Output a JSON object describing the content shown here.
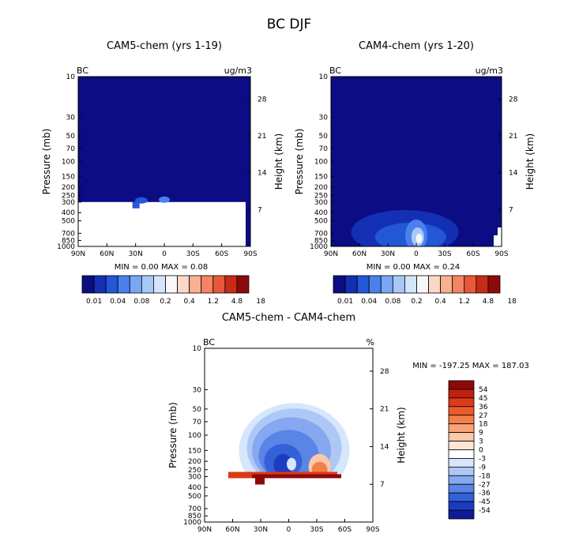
{
  "figure_title": "BC DJF",
  "chart_data": [
    {
      "type": "heatmap",
      "title": "CAM5-chem (yrs 1-19)",
      "left_label": "BC",
      "units": "ug/m3",
      "xlabel": "",
      "ylabel": "Pressure (mb)",
      "ylabel_right": "Height (km)",
      "x_ticks": [
        "90N",
        "60N",
        "30N",
        "0",
        "30S",
        "60S",
        "90S"
      ],
      "y_ticks": [
        "10",
        "30",
        "50",
        "70",
        "100",
        "150",
        "200",
        "250",
        "300",
        "400",
        "500",
        "700",
        "850",
        "1000"
      ],
      "height_ticks": [
        "28",
        "21",
        "14",
        "7"
      ],
      "minmax_text": "MIN =    0.00   MAX =    0.08",
      "colorbar_labels": [
        "0.01",
        "0.04",
        "0.08",
        "0.2",
        "0.4",
        "1.2",
        "4.8",
        "18"
      ],
      "colorbar_colors": [
        "#0c0c84",
        "#1330b4",
        "#2456d8",
        "#4a80ec",
        "#7aa6f4",
        "#a8c8f8",
        "#d4e4fa",
        "#f7f7f7",
        "#fbd8c6",
        "#f8b090",
        "#f48462",
        "#e85838",
        "#c82a18",
        "#8e0a0a"
      ],
      "field_color": "#0c0c84",
      "missing_color": "#ffffff"
    },
    {
      "type": "heatmap",
      "title": "CAM4-chem (yrs 1-20)",
      "left_label": "BC",
      "units": "ug/m3",
      "xlabel": "",
      "ylabel": "Pressure (mb)",
      "ylabel_right": "Height (km)",
      "x_ticks": [
        "90N",
        "60N",
        "30N",
        "0",
        "30S",
        "60S",
        "90S"
      ],
      "y_ticks": [
        "10",
        "30",
        "50",
        "70",
        "100",
        "150",
        "200",
        "250",
        "300",
        "400",
        "500",
        "700",
        "850",
        "1000"
      ],
      "height_ticks": [
        "28",
        "21",
        "14",
        "7"
      ],
      "minmax_text": "MIN =    0.00   MAX =    0.24",
      "colorbar_labels": [
        "0.01",
        "0.04",
        "0.08",
        "0.2",
        "0.4",
        "1.2",
        "4.8",
        "18"
      ],
      "colorbar_colors": [
        "#0c0c84",
        "#1330b4",
        "#2456d8",
        "#4a80ec",
        "#7aa6f4",
        "#a8c8f8",
        "#d4e4fa",
        "#f7f7f7",
        "#fbd8c6",
        "#f8b090",
        "#f48462",
        "#e85838",
        "#c82a18",
        "#8e0a0a"
      ],
      "field_color": "#0c0c84",
      "missing_color": "#ffffff"
    },
    {
      "type": "heatmap",
      "title": "CAM5-chem - CAM4-chem",
      "left_label": "BC",
      "units": "%",
      "xlabel": "",
      "ylabel": "Pressure (mb)",
      "ylabel_right": "Height (km)",
      "x_ticks": [
        "90N",
        "60N",
        "30N",
        "0",
        "30S",
        "60S",
        "90S"
      ],
      "y_ticks": [
        "10",
        "30",
        "50",
        "70",
        "100",
        "150",
        "200",
        "250",
        "300",
        "400",
        "500",
        "700",
        "850",
        "1000"
      ],
      "height_ticks": [
        "28",
        "21",
        "14",
        "7"
      ],
      "minmax_text": "MIN = -197.25   MAX = 187.03",
      "colorbar_labels": [
        "54",
        "45",
        "36",
        "27",
        "18",
        "9",
        "3",
        "0",
        "-3",
        "-9",
        "-18",
        "-27",
        "-36",
        "-45",
        "-54"
      ],
      "colorbar_colors": [
        "#8e0a0a",
        "#c0200f",
        "#dc3a18",
        "#ec5a2c",
        "#f47e4c",
        "#f8a478",
        "#fbc8a8",
        "#fde6d4",
        "#ffffff",
        "#d6e6fc",
        "#aec8f6",
        "#86a8f0",
        "#5a84e6",
        "#3460d8",
        "#1c3cc0",
        "#0c1c96"
      ],
      "field_color": "#ffffff",
      "missing_color": "#ffffff"
    }
  ]
}
